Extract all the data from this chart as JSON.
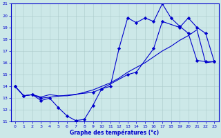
{
  "xlabel": "Graphe des températures (°c)",
  "bg_color": "#cce8e8",
  "line_color": "#0000cc",
  "xlim": [
    -0.5,
    23.5
  ],
  "ylim": [
    11,
    21
  ],
  "xticks": [
    0,
    1,
    2,
    3,
    4,
    5,
    6,
    7,
    8,
    9,
    10,
    11,
    12,
    13,
    14,
    15,
    16,
    17,
    18,
    19,
    20,
    21,
    22,
    23
  ],
  "yticks": [
    11,
    12,
    13,
    14,
    15,
    16,
    17,
    18,
    19,
    20,
    21
  ],
  "line1_x": [
    0,
    1,
    2,
    3,
    4,
    5,
    6,
    7,
    8,
    9,
    10,
    11,
    12,
    13,
    14,
    15,
    16,
    17,
    18,
    19,
    20,
    21,
    22,
    23
  ],
  "line1_y": [
    14,
    13.2,
    13.3,
    12.8,
    13.0,
    12.2,
    11.5,
    11.1,
    11.2,
    12.4,
    13.8,
    14.0,
    17.2,
    19.8,
    19.4,
    19.8,
    19.5,
    21.0,
    19.8,
    19.1,
    18.5,
    16.2,
    16.1,
    16.1
  ],
  "line2_x": [
    0,
    1,
    2,
    3,
    9,
    10,
    13,
    14,
    16,
    17,
    19,
    20,
    21,
    22,
    23
  ],
  "line2_y": [
    14,
    13.2,
    13.3,
    13.0,
    13.5,
    13.8,
    15.0,
    15.2,
    17.2,
    19.5,
    19.0,
    19.8,
    19.0,
    18.5,
    16.1
  ],
  "line3_x": [
    0,
    1,
    2,
    3,
    4,
    5,
    6,
    7,
    8,
    9,
    10,
    11,
    12,
    13,
    14,
    15,
    16,
    17,
    18,
    19,
    20,
    21,
    22,
    23
  ],
  "line3_y": [
    14,
    13.2,
    13.3,
    13.1,
    13.3,
    13.2,
    13.2,
    13.3,
    13.5,
    13.7,
    14.0,
    14.3,
    14.7,
    15.2,
    15.6,
    16.0,
    16.5,
    17.0,
    17.4,
    17.9,
    18.3,
    18.8,
    16.0,
    16.1
  ]
}
